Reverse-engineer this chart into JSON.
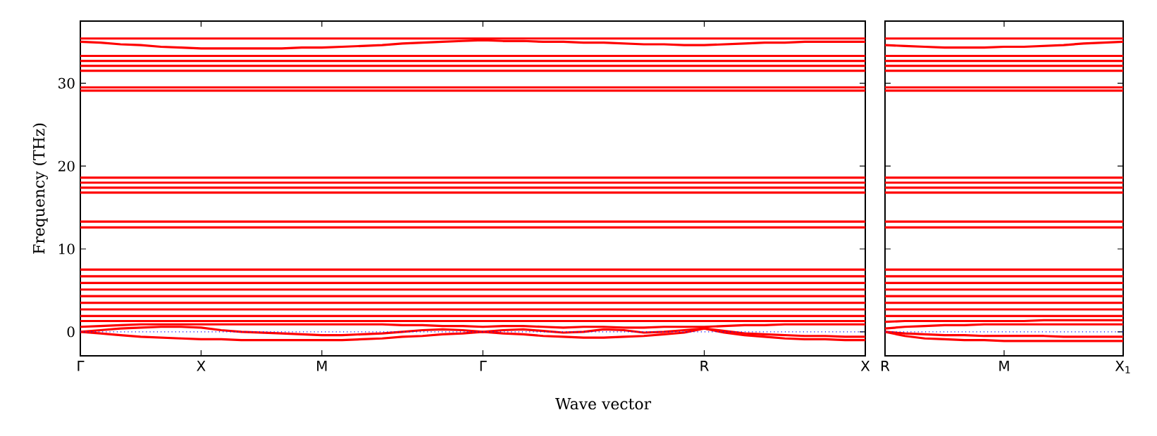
{
  "chart_data": [
    {
      "type": "line",
      "xlabel": "Wave vector",
      "ylabel": "Frequency (THz)",
      "color": "#ff0000",
      "categories": [
        "Γ",
        null,
        null,
        null,
        null,
        null,
        "X",
        null,
        null,
        null,
        null,
        null,
        "M",
        null,
        null,
        null,
        null,
        null,
        null,
        null,
        "Γ",
        null,
        null,
        null,
        null,
        null,
        null,
        null,
        null,
        null,
        null,
        "R",
        null,
        null,
        null,
        null,
        null,
        null,
        null,
        "X"
      ],
      "ylim": [
        -2.9,
        37.5
      ],
      "yticks": [
        0,
        10,
        20,
        30
      ],
      "ref_lines": [
        {
          "axis": "y",
          "value": 0,
          "color": "#0000ff",
          "line_style": "dotted"
        }
      ],
      "series": [
        {
          "values": [
            35.4,
            35.4,
            35.4,
            35.4,
            35.4,
            35.4,
            35.4,
            35.4,
            35.4,
            35.4,
            35.4,
            35.4,
            35.4,
            35.4,
            35.4,
            35.4,
            35.4,
            35.4,
            35.4,
            35.4,
            35.4,
            35.4,
            35.4,
            35.4,
            35.4,
            35.4,
            35.4,
            35.4,
            35.4,
            35.4,
            35.4,
            35.4,
            35.4,
            35.4,
            35.4,
            35.4,
            35.4,
            35.4,
            35.4,
            35.4
          ]
        },
        {
          "values": [
            35.0,
            34.9,
            34.7,
            34.6,
            34.4,
            34.3,
            34.2,
            34.2,
            34.2,
            34.2,
            34.2,
            34.3,
            34.3,
            34.4,
            34.5,
            34.6,
            34.8,
            34.9,
            35.0,
            35.1,
            35.2,
            35.1,
            35.1,
            35.0,
            35.0,
            34.9,
            34.9,
            34.8,
            34.7,
            34.7,
            34.6,
            34.6,
            34.7,
            34.8,
            34.9,
            34.9,
            35.0,
            35.0,
            35.0,
            35.0
          ]
        },
        {
          "values": [
            33.3,
            33.3,
            33.3,
            33.3,
            33.3,
            33.3,
            33.3,
            33.3,
            33.3,
            33.3,
            33.3,
            33.3,
            33.3,
            33.3,
            33.3,
            33.3,
            33.3,
            33.3,
            33.3,
            33.3,
            33.3,
            33.3,
            33.3,
            33.3,
            33.3,
            33.3,
            33.3,
            33.3,
            33.3,
            33.3,
            33.3,
            33.3,
            33.3,
            33.3,
            33.3,
            33.3,
            33.3,
            33.3,
            33.3,
            33.3
          ]
        },
        {
          "values": [
            32.7,
            32.7,
            32.7,
            32.7,
            32.7,
            32.7,
            32.7,
            32.7,
            32.7,
            32.7,
            32.7,
            32.7,
            32.7,
            32.7,
            32.7,
            32.7,
            32.7,
            32.7,
            32.7,
            32.7,
            32.7,
            32.7,
            32.7,
            32.7,
            32.7,
            32.7,
            32.7,
            32.7,
            32.7,
            32.7,
            32.7,
            32.7,
            32.7,
            32.7,
            32.7,
            32.7,
            32.7,
            32.7,
            32.7,
            32.7
          ]
        },
        {
          "values": [
            32.1,
            32.1,
            32.1,
            32.1,
            32.1,
            32.1,
            32.1,
            32.1,
            32.1,
            32.1,
            32.1,
            32.1,
            32.1,
            32.1,
            32.1,
            32.1,
            32.1,
            32.1,
            32.1,
            32.1,
            32.1,
            32.1,
            32.1,
            32.1,
            32.1,
            32.1,
            32.1,
            32.1,
            32.1,
            32.1,
            32.1,
            32.1,
            32.1,
            32.1,
            32.1,
            32.1,
            32.1,
            32.1,
            32.1,
            32.1
          ]
        },
        {
          "values": [
            31.5,
            31.5,
            31.5,
            31.5,
            31.5,
            31.5,
            31.5,
            31.5,
            31.5,
            31.5,
            31.5,
            31.5,
            31.5,
            31.5,
            31.5,
            31.5,
            31.5,
            31.5,
            31.5,
            31.5,
            31.5,
            31.5,
            31.5,
            31.5,
            31.5,
            31.5,
            31.5,
            31.5,
            31.5,
            31.5,
            31.5,
            31.5,
            31.5,
            31.5,
            31.5,
            31.5,
            31.5,
            31.5,
            31.5,
            31.5
          ]
        },
        {
          "values": [
            29.5,
            29.5,
            29.5,
            29.5,
            29.5,
            29.5,
            29.5,
            29.5,
            29.5,
            29.5,
            29.5,
            29.5,
            29.5,
            29.5,
            29.5,
            29.5,
            29.5,
            29.5,
            29.5,
            29.5,
            29.5,
            29.5,
            29.5,
            29.5,
            29.5,
            29.5,
            29.5,
            29.5,
            29.5,
            29.5,
            29.5,
            29.5,
            29.5,
            29.5,
            29.5,
            29.5,
            29.5,
            29.5,
            29.5,
            29.5
          ]
        },
        {
          "values": [
            29.1,
            29.1,
            29.1,
            29.1,
            29.1,
            29.1,
            29.1,
            29.1,
            29.1,
            29.1,
            29.1,
            29.1,
            29.1,
            29.1,
            29.1,
            29.1,
            29.1,
            29.1,
            29.1,
            29.1,
            29.1,
            29.1,
            29.1,
            29.1,
            29.1,
            29.1,
            29.1,
            29.1,
            29.1,
            29.1,
            29.1,
            29.1,
            29.1,
            29.1,
            29.1,
            29.1,
            29.1,
            29.1,
            29.1,
            29.1
          ]
        },
        {
          "values": [
            18.6,
            18.6,
            18.6,
            18.6,
            18.6,
            18.6,
            18.6,
            18.6,
            18.6,
            18.6,
            18.6,
            18.6,
            18.6,
            18.6,
            18.6,
            18.6,
            18.6,
            18.6,
            18.6,
            18.6,
            18.6,
            18.6,
            18.6,
            18.6,
            18.6,
            18.6,
            18.6,
            18.6,
            18.6,
            18.6,
            18.6,
            18.6,
            18.6,
            18.6,
            18.6,
            18.6,
            18.6,
            18.6,
            18.6,
            18.6
          ]
        },
        {
          "values": [
            18.0,
            18.0,
            18.0,
            18.0,
            18.0,
            18.0,
            18.0,
            18.0,
            18.0,
            18.0,
            18.0,
            18.0,
            18.0,
            18.0,
            18.0,
            18.0,
            18.0,
            18.0,
            18.0,
            18.0,
            18.0,
            18.0,
            18.0,
            18.0,
            18.0,
            18.0,
            18.0,
            18.0,
            18.0,
            18.0,
            18.0,
            18.0,
            18.0,
            18.0,
            18.0,
            18.0,
            18.0,
            18.0,
            18.0,
            18.0
          ]
        },
        {
          "values": [
            17.4,
            17.4,
            17.4,
            17.4,
            17.4,
            17.4,
            17.4,
            17.4,
            17.4,
            17.4,
            17.4,
            17.4,
            17.4,
            17.4,
            17.4,
            17.4,
            17.4,
            17.4,
            17.4,
            17.4,
            17.4,
            17.4,
            17.4,
            17.4,
            17.4,
            17.4,
            17.4,
            17.4,
            17.4,
            17.4,
            17.4,
            17.4,
            17.4,
            17.4,
            17.4,
            17.4,
            17.4,
            17.4,
            17.4,
            17.4
          ]
        },
        {
          "values": [
            16.8,
            16.8,
            16.8,
            16.8,
            16.8,
            16.8,
            16.8,
            16.8,
            16.8,
            16.8,
            16.8,
            16.8,
            16.8,
            16.8,
            16.8,
            16.8,
            16.8,
            16.8,
            16.8,
            16.8,
            16.8,
            16.8,
            16.8,
            16.8,
            16.8,
            16.8,
            16.8,
            16.8,
            16.8,
            16.8,
            16.8,
            16.8,
            16.8,
            16.8,
            16.8,
            16.8,
            16.8,
            16.8,
            16.8,
            16.8
          ]
        },
        {
          "values": [
            13.3,
            13.3,
            13.3,
            13.3,
            13.3,
            13.3,
            13.3,
            13.3,
            13.3,
            13.3,
            13.3,
            13.3,
            13.3,
            13.3,
            13.3,
            13.3,
            13.3,
            13.3,
            13.3,
            13.3,
            13.3,
            13.3,
            13.3,
            13.3,
            13.3,
            13.3,
            13.3,
            13.3,
            13.3,
            13.3,
            13.3,
            13.3,
            13.3,
            13.3,
            13.3,
            13.3,
            13.3,
            13.3,
            13.3,
            13.3
          ]
        },
        {
          "values": [
            12.6,
            12.6,
            12.6,
            12.6,
            12.6,
            12.6,
            12.6,
            12.6,
            12.6,
            12.6,
            12.6,
            12.6,
            12.6,
            12.6,
            12.6,
            12.6,
            12.6,
            12.6,
            12.6,
            12.6,
            12.6,
            12.6,
            12.6,
            12.6,
            12.6,
            12.6,
            12.6,
            12.6,
            12.6,
            12.6,
            12.6,
            12.6,
            12.6,
            12.6,
            12.6,
            12.6,
            12.6,
            12.6,
            12.6,
            12.6
          ]
        },
        {
          "values": [
            7.5,
            7.5,
            7.5,
            7.5,
            7.5,
            7.5,
            7.5,
            7.5,
            7.5,
            7.5,
            7.5,
            7.5,
            7.5,
            7.5,
            7.5,
            7.5,
            7.5,
            7.5,
            7.5,
            7.5,
            7.5,
            7.5,
            7.5,
            7.5,
            7.5,
            7.5,
            7.5,
            7.5,
            7.5,
            7.5,
            7.5,
            7.5,
            7.5,
            7.5,
            7.5,
            7.5,
            7.5,
            7.5,
            7.5,
            7.5
          ]
        },
        {
          "values": [
            6.7,
            6.7,
            6.7,
            6.7,
            6.7,
            6.7,
            6.7,
            6.7,
            6.7,
            6.7,
            6.7,
            6.7,
            6.7,
            6.7,
            6.7,
            6.7,
            6.7,
            6.7,
            6.7,
            6.7,
            6.7,
            6.7,
            6.7,
            6.7,
            6.7,
            6.7,
            6.7,
            6.7,
            6.7,
            6.7,
            6.7,
            6.7,
            6.7,
            6.7,
            6.7,
            6.7,
            6.7,
            6.7,
            6.7,
            6.7
          ]
        },
        {
          "values": [
            5.9,
            5.9,
            5.9,
            5.9,
            5.9,
            5.9,
            5.9,
            5.9,
            5.9,
            5.9,
            5.9,
            5.9,
            5.9,
            5.9,
            5.9,
            5.9,
            5.9,
            5.9,
            5.9,
            5.9,
            5.9,
            5.9,
            5.9,
            5.9,
            5.9,
            5.9,
            5.9,
            5.9,
            5.9,
            5.9,
            5.9,
            5.9,
            5.9,
            5.9,
            5.9,
            5.9,
            5.9,
            5.9,
            5.9,
            5.9
          ]
        },
        {
          "values": [
            5.1,
            5.1,
            5.1,
            5.1,
            5.1,
            5.1,
            5.1,
            5.1,
            5.1,
            5.1,
            5.1,
            5.1,
            5.1,
            5.1,
            5.1,
            5.1,
            5.1,
            5.1,
            5.1,
            5.1,
            5.1,
            5.1,
            5.1,
            5.1,
            5.1,
            5.1,
            5.1,
            5.1,
            5.1,
            5.1,
            5.1,
            5.1,
            5.1,
            5.1,
            5.1,
            5.1,
            5.1,
            5.1,
            5.1,
            5.1
          ]
        },
        {
          "values": [
            4.3,
            4.3,
            4.3,
            4.3,
            4.3,
            4.3,
            4.3,
            4.3,
            4.3,
            4.3,
            4.3,
            4.3,
            4.3,
            4.3,
            4.3,
            4.3,
            4.3,
            4.3,
            4.3,
            4.3,
            4.3,
            4.3,
            4.3,
            4.3,
            4.3,
            4.3,
            4.3,
            4.3,
            4.3,
            4.3,
            4.3,
            4.3,
            4.3,
            4.3,
            4.3,
            4.3,
            4.3,
            4.3,
            4.3,
            4.3
          ]
        },
        {
          "values": [
            3.5,
            3.5,
            3.5,
            3.5,
            3.5,
            3.5,
            3.5,
            3.5,
            3.5,
            3.5,
            3.5,
            3.5,
            3.5,
            3.5,
            3.5,
            3.5,
            3.5,
            3.5,
            3.5,
            3.5,
            3.5,
            3.5,
            3.5,
            3.5,
            3.5,
            3.5,
            3.5,
            3.5,
            3.5,
            3.5,
            3.5,
            3.5,
            3.5,
            3.5,
            3.5,
            3.5,
            3.5,
            3.5,
            3.5,
            3.5
          ]
        },
        {
          "values": [
            2.7,
            2.7,
            2.7,
            2.7,
            2.7,
            2.7,
            2.7,
            2.7,
            2.7,
            2.7,
            2.7,
            2.7,
            2.7,
            2.7,
            2.7,
            2.7,
            2.7,
            2.7,
            2.7,
            2.7,
            2.7,
            2.7,
            2.7,
            2.7,
            2.7,
            2.7,
            2.7,
            2.7,
            2.7,
            2.7,
            2.7,
            2.7,
            2.7,
            2.7,
            2.7,
            2.7,
            2.7,
            2.7,
            2.7,
            2.7
          ]
        },
        {
          "values": [
            1.9,
            1.9,
            1.9,
            1.9,
            1.9,
            1.9,
            1.9,
            1.9,
            1.9,
            1.9,
            1.9,
            1.9,
            1.9,
            1.9,
            1.9,
            1.9,
            1.9,
            1.9,
            1.9,
            1.9,
            1.9,
            1.9,
            1.9,
            1.9,
            1.9,
            1.9,
            1.9,
            1.9,
            1.9,
            1.9,
            1.9,
            1.9,
            1.9,
            1.9,
            1.9,
            1.9,
            1.9,
            1.9,
            1.9,
            1.9
          ]
        },
        {
          "values": [
            1.3,
            1.3,
            1.3,
            1.3,
            1.3,
            1.3,
            1.3,
            1.3,
            1.3,
            1.3,
            1.3,
            1.3,
            1.3,
            1.3,
            1.3,
            1.3,
            1.3,
            1.3,
            1.3,
            1.3,
            1.3,
            1.3,
            1.3,
            1.3,
            1.3,
            1.3,
            1.3,
            1.3,
            1.3,
            1.3,
            1.3,
            1.3,
            1.3,
            1.3,
            1.3,
            1.3,
            1.3,
            1.3,
            1.3,
            1.3
          ]
        },
        {
          "values": [
            0.6,
            0.7,
            0.8,
            0.9,
            0.9,
            0.9,
            0.9,
            0.9,
            0.9,
            0.9,
            0.9,
            0.9,
            0.9,
            0.9,
            0.9,
            0.9,
            0.8,
            0.8,
            0.7,
            0.7,
            0.6,
            0.7,
            0.7,
            0.6,
            0.5,
            0.6,
            0.6,
            0.5,
            0.5,
            0.6,
            0.6,
            0.6,
            0.7,
            0.8,
            0.8,
            0.9,
            0.9,
            0.9,
            0.9,
            0.9
          ]
        },
        {
          "values": [
            0,
            0.2,
            0.4,
            0.5,
            0.6,
            0.6,
            0.5,
            0.2,
            0.0,
            -0.1,
            -0.2,
            -0.3,
            -0.4,
            -0.4,
            -0.3,
            -0.2,
            0.0,
            0.2,
            0.3,
            0.2,
            0,
            0.2,
            0.3,
            0.1,
            -0.1,
            0.0,
            0.3,
            0.2,
            -0.1,
            0.0,
            0.2,
            0.4,
            0.1,
            -0.2,
            -0.3,
            -0.4,
            -0.5,
            -0.5,
            -0.6,
            -0.6
          ]
        },
        {
          "values": [
            0,
            -0.2,
            -0.4,
            -0.6,
            -0.7,
            -0.8,
            -0.9,
            -0.9,
            -1.0,
            -1.0,
            -1.0,
            -1.0,
            -1.0,
            -1.0,
            -0.9,
            -0.8,
            -0.6,
            -0.5,
            -0.3,
            -0.2,
            0,
            -0.2,
            -0.3,
            -0.5,
            -0.6,
            -0.7,
            -0.7,
            -0.6,
            -0.5,
            -0.3,
            -0.1,
            0.4,
            -0.1,
            -0.4,
            -0.6,
            -0.8,
            -0.9,
            -0.9,
            -1.0,
            -1.0
          ]
        }
      ]
    },
    {
      "type": "line",
      "tick_labels": "x",
      "color": "#ff0000",
      "categories": [
        "R",
        null,
        null,
        null,
        null,
        null,
        "M",
        null,
        null,
        null,
        null,
        null,
        "X$_{1}$"
      ],
      "ylim": [
        -2.9,
        37.5
      ],
      "yticks": [
        0,
        10,
        20,
        30
      ],
      "ref_lines": [
        {
          "axis": "y",
          "value": 0,
          "color": "#0000ff",
          "line_style": "dotted"
        }
      ],
      "series": [
        {
          "values": [
            35.4,
            35.4,
            35.4,
            35.4,
            35.4,
            35.4,
            35.4,
            35.4,
            35.4,
            35.4,
            35.4,
            35.4,
            35.4
          ]
        },
        {
          "values": [
            34.6,
            34.5,
            34.4,
            34.3,
            34.3,
            34.3,
            34.4,
            34.4,
            34.5,
            34.6,
            34.8,
            34.9,
            35.0
          ]
        },
        {
          "values": [
            33.3,
            33.3,
            33.3,
            33.3,
            33.3,
            33.3,
            33.3,
            33.3,
            33.3,
            33.3,
            33.3,
            33.3,
            33.3
          ]
        },
        {
          "values": [
            32.7,
            32.7,
            32.7,
            32.7,
            32.7,
            32.7,
            32.7,
            32.7,
            32.7,
            32.7,
            32.7,
            32.7,
            32.7
          ]
        },
        {
          "values": [
            32.1,
            32.1,
            32.1,
            32.1,
            32.1,
            32.1,
            32.1,
            32.1,
            32.1,
            32.1,
            32.1,
            32.1,
            32.1
          ]
        },
        {
          "values": [
            31.5,
            31.5,
            31.5,
            31.5,
            31.5,
            31.5,
            31.5,
            31.5,
            31.5,
            31.5,
            31.5,
            31.5,
            31.5
          ]
        },
        {
          "values": [
            29.5,
            29.5,
            29.5,
            29.5,
            29.5,
            29.5,
            29.5,
            29.5,
            29.5,
            29.5,
            29.5,
            29.5,
            29.5
          ]
        },
        {
          "values": [
            29.1,
            29.1,
            29.1,
            29.1,
            29.1,
            29.1,
            29.1,
            29.1,
            29.1,
            29.1,
            29.1,
            29.1,
            29.1
          ]
        },
        {
          "values": [
            18.6,
            18.6,
            18.6,
            18.6,
            18.6,
            18.6,
            18.6,
            18.6,
            18.6,
            18.6,
            18.6,
            18.6,
            18.6
          ]
        },
        {
          "values": [
            18.0,
            18.0,
            18.0,
            18.0,
            18.0,
            18.0,
            18.0,
            18.0,
            18.0,
            18.0,
            18.0,
            18.0,
            18.0
          ]
        },
        {
          "values": [
            17.4,
            17.4,
            17.4,
            17.4,
            17.4,
            17.4,
            17.4,
            17.4,
            17.4,
            17.4,
            17.4,
            17.4,
            17.4
          ]
        },
        {
          "values": [
            16.8,
            16.8,
            16.8,
            16.8,
            16.8,
            16.8,
            16.8,
            16.8,
            16.8,
            16.8,
            16.8,
            16.8,
            16.8
          ]
        },
        {
          "values": [
            13.3,
            13.3,
            13.3,
            13.3,
            13.3,
            13.3,
            13.3,
            13.3,
            13.3,
            13.3,
            13.3,
            13.3,
            13.3
          ]
        },
        {
          "values": [
            12.6,
            12.6,
            12.6,
            12.6,
            12.6,
            12.6,
            12.6,
            12.6,
            12.6,
            12.6,
            12.6,
            12.6,
            12.6
          ]
        },
        {
          "values": [
            7.5,
            7.5,
            7.5,
            7.5,
            7.5,
            7.5,
            7.5,
            7.5,
            7.5,
            7.5,
            7.5,
            7.5,
            7.5
          ]
        },
        {
          "values": [
            6.7,
            6.7,
            6.7,
            6.7,
            6.7,
            6.7,
            6.7,
            6.7,
            6.7,
            6.7,
            6.7,
            6.7,
            6.7
          ]
        },
        {
          "values": [
            5.9,
            5.9,
            5.9,
            5.9,
            5.9,
            5.9,
            5.9,
            5.9,
            5.9,
            5.9,
            5.9,
            5.9,
            5.9
          ]
        },
        {
          "values": [
            5.1,
            5.1,
            5.1,
            5.1,
            5.1,
            5.1,
            5.1,
            5.1,
            5.1,
            5.1,
            5.1,
            5.1,
            5.1
          ]
        },
        {
          "values": [
            4.3,
            4.3,
            4.3,
            4.3,
            4.3,
            4.3,
            4.3,
            4.3,
            4.3,
            4.3,
            4.3,
            4.3,
            4.3
          ]
        },
        {
          "values": [
            3.5,
            3.5,
            3.5,
            3.5,
            3.5,
            3.5,
            3.5,
            3.5,
            3.5,
            3.5,
            3.5,
            3.5,
            3.5
          ]
        },
        {
          "values": [
            2.7,
            2.7,
            2.7,
            2.7,
            2.7,
            2.7,
            2.7,
            2.7,
            2.7,
            2.7,
            2.7,
            2.7,
            2.7
          ]
        },
        {
          "values": [
            1.9,
            1.9,
            1.9,
            1.9,
            1.9,
            1.9,
            1.9,
            1.9,
            1.9,
            1.9,
            1.9,
            1.9,
            1.9
          ]
        },
        {
          "values": [
            1.2,
            1.3,
            1.3,
            1.3,
            1.3,
            1.3,
            1.3,
            1.3,
            1.4,
            1.4,
            1.4,
            1.4,
            1.4
          ]
        },
        {
          "values": [
            0.4,
            0.6,
            0.7,
            0.8,
            0.8,
            0.9,
            0.9,
            0.9,
            0.9,
            0.9,
            0.9,
            0.9,
            0.9
          ]
        },
        {
          "values": [
            0,
            -0.2,
            -0.3,
            -0.4,
            -0.4,
            -0.5,
            -0.5,
            -0.5,
            -0.5,
            -0.6,
            -0.6,
            -0.6,
            -0.6
          ]
        },
        {
          "values": [
            0,
            -0.5,
            -0.8,
            -0.9,
            -1.0,
            -1.0,
            -1.1,
            -1.1,
            -1.1,
            -1.1,
            -1.1,
            -1.1,
            -1.1
          ]
        }
      ]
    }
  ]
}
